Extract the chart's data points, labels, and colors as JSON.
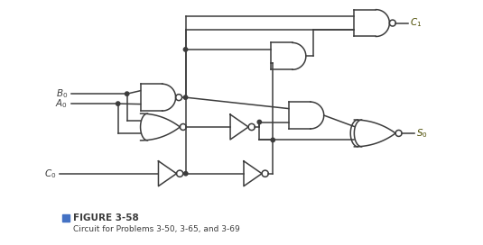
{
  "title": "FIGURE 3-58",
  "subtitle": "Circuit for Problems 3-50, 3-65, and 3-69",
  "figure_color": "#4472C4",
  "line_color": "#3c3c3c",
  "bg_color": "#ffffff",
  "lw": 1.1
}
